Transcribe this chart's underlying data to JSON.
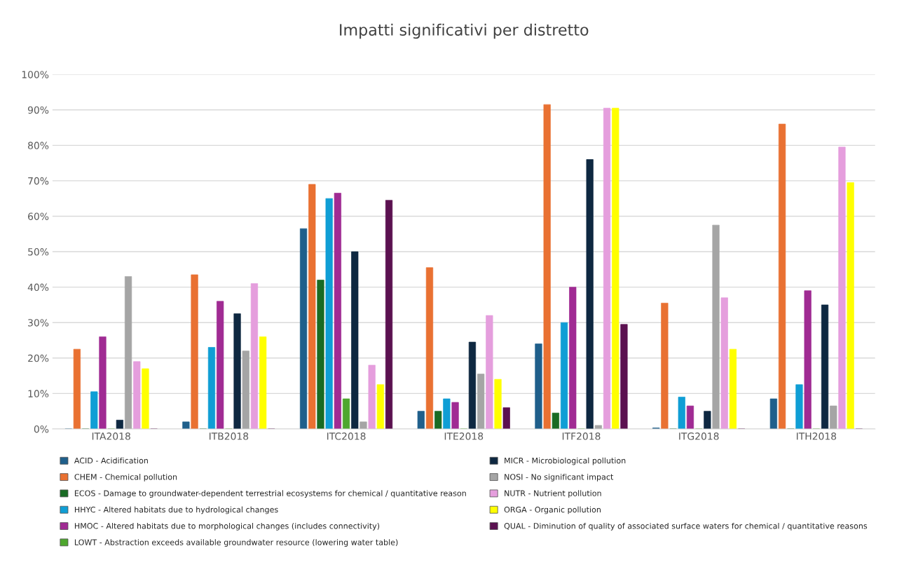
{
  "chart_data": {
    "type": "bar",
    "title": "Impatti significativi per distretto",
    "categories": [
      "ITA2018",
      "ITB2018",
      "ITC2018",
      "ITE2018",
      "ITF2018",
      "ITG2018",
      "ITH2018"
    ],
    "series": [
      {
        "name": "ACID - Acidification",
        "color": "#1f5f8b",
        "values": [
          0,
          2,
          56.5,
          5,
          24,
          0.3,
          8.5
        ]
      },
      {
        "name": "CHEM - Chemical pollution",
        "color": "#e97132",
        "values": [
          22.5,
          43.5,
          69,
          45.5,
          91.5,
          35.5,
          86
        ]
      },
      {
        "name": "ECOS - Damage to groundwater-dependent terrestrial ecosystems for chemical / quantitative reason",
        "color": "#196b24",
        "values": [
          0,
          0,
          42,
          5,
          4.5,
          0,
          0
        ]
      },
      {
        "name": "HHYC - Altered habitats due to hydrological changes",
        "color": "#0f9ed5",
        "values": [
          10.5,
          23,
          65,
          8.5,
          30,
          9,
          12.5
        ]
      },
      {
        "name": "HMOC - Altered habitats due to morphological changes (includes connectivity)",
        "color": "#a02b93",
        "values": [
          26,
          36,
          66.5,
          7.5,
          40,
          6.5,
          39
        ]
      },
      {
        "name": "LOWT - Abstraction exceeds available groundwater resource (lowering water table)",
        "color": "#4ea72e",
        "values": [
          0,
          0,
          8.5,
          0,
          0,
          0,
          0
        ]
      },
      {
        "name": "MICR - Microbiological pollution",
        "color": "#0e2841",
        "values": [
          2.5,
          32.5,
          50,
          24.5,
          76,
          5,
          35
        ]
      },
      {
        "name": "NOSI - No significant impact",
        "color": "#a5a5a5",
        "values": [
          43,
          22,
          2,
          15.5,
          1,
          57.5,
          6.5
        ]
      },
      {
        "name": "NUTR - Nutrient pollution",
        "color": "#e59edd",
        "values": [
          19,
          41,
          18,
          32,
          90.5,
          37,
          79.5
        ]
      },
      {
        "name": "ORGA - Organic pollution",
        "color": "#ffff00",
        "values": [
          17,
          26,
          12.5,
          14,
          90.5,
          22.5,
          69.5
        ]
      },
      {
        "name": "QUAL - Diminution of quality of associated surface waters for chemical / quantitative reasons",
        "color": "#5b1150",
        "values": [
          0,
          0,
          64.5,
          6,
          29.5,
          0,
          0
        ]
      }
    ],
    "ylim": [
      0,
      100
    ],
    "yticks": [
      {
        "value": 0,
        "label": "0%"
      },
      {
        "value": 10,
        "label": "10%"
      },
      {
        "value": 20,
        "label": "20%"
      },
      {
        "value": 30,
        "label": "30%"
      },
      {
        "value": 40,
        "label": "40%"
      },
      {
        "value": 50,
        "label": "50%"
      },
      {
        "value": 60,
        "label": "60%"
      },
      {
        "value": 70,
        "label": "70%"
      },
      {
        "value": 80,
        "label": "80%"
      },
      {
        "value": 90,
        "label": "90%"
      },
      {
        "value": 100,
        "label": "100%"
      }
    ],
    "grid": "y",
    "legend": "bottom"
  }
}
